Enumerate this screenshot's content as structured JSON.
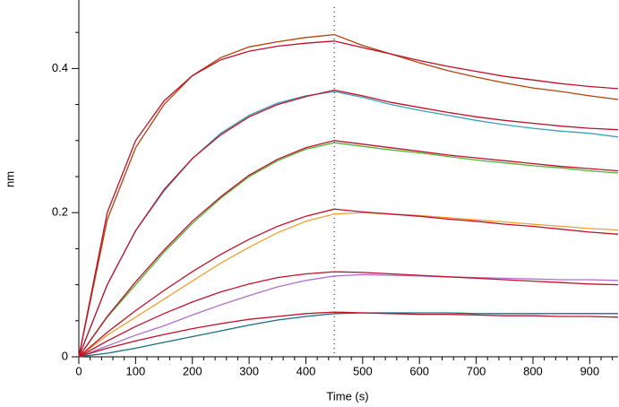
{
  "chart_data": {
    "type": "line",
    "xlabel": "Time (s)",
    "ylabel": "nm",
    "x": [
      0,
      50,
      100,
      150,
      200,
      250,
      300,
      350,
      400,
      450,
      500,
      550,
      600,
      650,
      700,
      750,
      800,
      850,
      900,
      950
    ],
    "xlim": [
      0,
      950
    ],
    "ylim": [
      0,
      0.495
    ],
    "xticks": [
      0,
      100,
      200,
      300,
      400,
      500,
      600,
      700,
      800,
      900
    ],
    "yticks": [
      0,
      0.2,
      0.4
    ],
    "xminorticks": [
      20,
      40,
      60,
      80,
      120,
      140,
      160,
      180,
      220,
      240,
      260,
      280,
      320,
      340,
      360,
      380,
      420,
      440,
      460,
      480,
      520,
      540,
      560,
      580,
      620,
      640,
      660,
      680,
      720,
      740,
      760,
      780,
      820,
      840,
      860,
      880,
      920,
      940
    ],
    "yminorticks": [
      0.05,
      0.1,
      0.15,
      0.25,
      0.3,
      0.35,
      0.45
    ],
    "vline": 450,
    "series": [
      {
        "color": "#b5400a",
        "values": [
          0,
          0.19,
          0.29,
          0.35,
          0.39,
          0.415,
          0.43,
          0.437,
          0.443,
          0.447,
          0.432,
          0.42,
          0.408,
          0.397,
          0.388,
          0.38,
          0.373,
          0.368,
          0.362,
          0.357
        ]
      },
      {
        "color": "#3aa0b8",
        "values": [
          0,
          0.1,
          0.175,
          0.23,
          0.275,
          0.31,
          0.335,
          0.352,
          0.362,
          0.368,
          0.36,
          0.35,
          0.342,
          0.335,
          0.328,
          0.322,
          0.317,
          0.313,
          0.31,
          0.305
        ]
      },
      {
        "color": "#4bb534",
        "values": [
          0,
          0.055,
          0.1,
          0.145,
          0.185,
          0.22,
          0.25,
          0.272,
          0.288,
          0.297,
          0.292,
          0.287,
          0.283,
          0.278,
          0.273,
          0.269,
          0.265,
          0.262,
          0.258,
          0.255
        ]
      },
      {
        "color": "#f0a030",
        "values": [
          0,
          0.03,
          0.055,
          0.08,
          0.105,
          0.13,
          0.152,
          0.172,
          0.188,
          0.198,
          0.2,
          0.198,
          0.196,
          0.193,
          0.19,
          0.187,
          0.184,
          0.181,
          0.178,
          0.176
        ]
      },
      {
        "color": "#b070d0",
        "values": [
          0,
          0.015,
          0.03,
          0.043,
          0.058,
          0.072,
          0.085,
          0.097,
          0.106,
          0.112,
          0.114,
          0.113,
          0.112,
          0.111,
          0.11,
          0.109,
          0.108,
          0.107,
          0.107,
          0.106
        ]
      },
      {
        "color": "#1a6e80",
        "values": [
          0,
          0.005,
          0.012,
          0.02,
          0.028,
          0.036,
          0.044,
          0.051,
          0.056,
          0.06,
          0.061,
          0.061,
          0.061,
          0.061,
          0.06,
          0.06,
          0.06,
          0.06,
          0.06,
          0.06
        ]
      },
      {
        "color": "#c0102a",
        "values": [
          0,
          0.2,
          0.3,
          0.355,
          0.39,
          0.412,
          0.424,
          0.431,
          0.435,
          0.438,
          0.429,
          0.42,
          0.411,
          0.403,
          0.396,
          0.389,
          0.384,
          0.379,
          0.375,
          0.372
        ]
      },
      {
        "color": "#c0102a",
        "values": [
          0,
          0.1,
          0.175,
          0.232,
          0.275,
          0.308,
          0.333,
          0.35,
          0.361,
          0.37,
          0.362,
          0.353,
          0.346,
          0.339,
          0.333,
          0.328,
          0.324,
          0.32,
          0.317,
          0.315
        ]
      },
      {
        "color": "#c0102a",
        "values": [
          0,
          0.056,
          0.104,
          0.148,
          0.188,
          0.222,
          0.252,
          0.274,
          0.29,
          0.3,
          0.295,
          0.29,
          0.285,
          0.28,
          0.276,
          0.272,
          0.268,
          0.264,
          0.261,
          0.258
        ]
      },
      {
        "color": "#c0102a",
        "values": [
          0,
          0.034,
          0.064,
          0.092,
          0.118,
          0.142,
          0.163,
          0.181,
          0.195,
          0.205,
          0.201,
          0.198,
          0.195,
          0.191,
          0.188,
          0.184,
          0.181,
          0.177,
          0.173,
          0.17
        ]
      },
      {
        "color": "#c0102a",
        "values": [
          0,
          0.022,
          0.042,
          0.06,
          0.076,
          0.09,
          0.101,
          0.11,
          0.115,
          0.118,
          0.117,
          0.115,
          0.113,
          0.111,
          0.109,
          0.107,
          0.105,
          0.103,
          0.101,
          0.1
        ]
      },
      {
        "color": "#c0102a",
        "values": [
          0,
          0.012,
          0.022,
          0.031,
          0.039,
          0.046,
          0.052,
          0.056,
          0.06,
          0.062,
          0.061,
          0.06,
          0.059,
          0.059,
          0.058,
          0.057,
          0.057,
          0.056,
          0.056,
          0.055
        ]
      }
    ]
  }
}
